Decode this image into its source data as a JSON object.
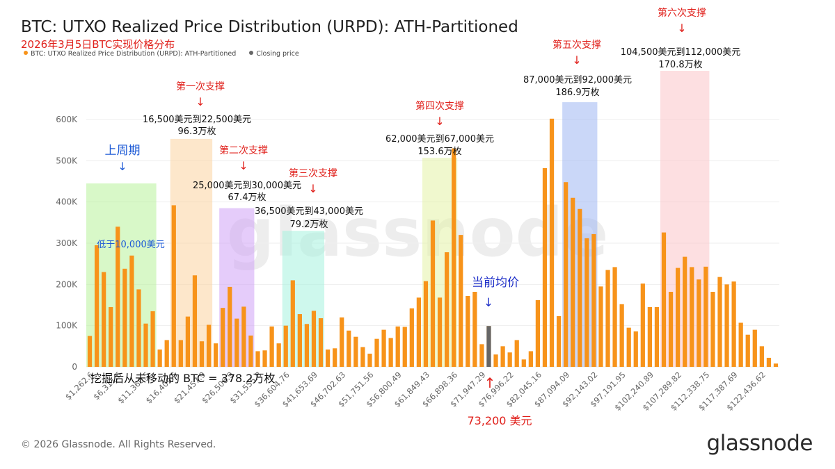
{
  "header": {
    "title": "BTC: UTXO Realized Price Distribution (URPD): ATH-Partitioned",
    "subtitle": "2026年3月5日BTC实现价格分布"
  },
  "legend": {
    "items": [
      {
        "label": "BTC: UTXO Realized Price Distribution (URPD): ATH-Partitioned",
        "color": "#f7931a"
      },
      {
        "label": "Closing price",
        "color": "#666666"
      }
    ]
  },
  "footer": {
    "copyright": "© 2026 Glassnode. All Rights Reserved.",
    "brand": "glassnode"
  },
  "watermark": "glassnode",
  "chart_data": {
    "type": "bar",
    "ylim": [
      0,
      600000
    ],
    "y_ticks": [
      0,
      100000,
      200000,
      300000,
      400000,
      500000,
      600000
    ],
    "y_tick_labels": [
      "0",
      "100K",
      "200K",
      "300K",
      "400K",
      "500K",
      "600K"
    ],
    "x_tick_labels": [
      "$1,262.6",
      "$6,311.6",
      "$11,360.5",
      "$16,409.5",
      "$21,457.9",
      "$26,506.9",
      "$31,555.8",
      "$36,604.76",
      "$41,653.69",
      "$46,702.63",
      "$51,751.56",
      "$56,800.49",
      "$61,849.43",
      "$66,898.36",
      "$71,947.29",
      "$76,996.22",
      "$82,045.16",
      "$87,094.09",
      "$92,143.02",
      "$97,191.95",
      "$102,240.89",
      "$107,289.82",
      "$112,338.75",
      "$117,387.69",
      "$122,436.62"
    ],
    "series": [
      {
        "name": "BTC: UTXO Realized Price Distribution (URPD): ATH-Partitioned",
        "color": "#f7931a",
        "values": [
          75000,
          295000,
          230000,
          145000,
          340000,
          238000,
          270000,
          188000,
          105000,
          135000,
          42000,
          65000,
          392000,
          65000,
          122000,
          222000,
          62000,
          102000,
          57000,
          143000,
          194000,
          117000,
          146000,
          76000,
          38000,
          40000,
          98000,
          57000,
          100000,
          210000,
          128000,
          104000,
          136000,
          118000,
          42000,
          45000,
          120000,
          88000,
          73000,
          48000,
          32000,
          68000,
          90000,
          70000,
          98000,
          97000,
          142000,
          168000,
          208000,
          355000,
          168000,
          278000,
          530000,
          320000,
          172000,
          182000,
          55000,
          99000,
          30000,
          50000,
          35000,
          65000,
          18000,
          38000,
          162000,
          482000,
          602000,
          123000,
          448000,
          410000,
          383000,
          312000,
          322000,
          195000,
          235000,
          242000,
          152000,
          95000,
          86000,
          202000,
          145000,
          145000,
          326000,
          182000,
          240000,
          267000,
          242000,
          212000,
          243000,
          182000,
          218000,
          200000,
          207000,
          107000,
          78000,
          90000,
          50000,
          22000,
          8000
        ]
      },
      {
        "name": "Closing price",
        "color": "#666666",
        "index": 57,
        "value": 99000
      }
    ]
  },
  "annotations": {
    "zones": [
      {
        "title": "上周期",
        "arrow": "↓",
        "inner_label": "低于10,000美元",
        "color": "#b8f29a",
        "title_color": "#1e5bd6"
      },
      {
        "title": "第一次支撑",
        "arrow": "↓",
        "range": "16,500美元到22,500美元",
        "amount": "96.3万枚",
        "color": "#fcd3a1",
        "title_color": "#e0201b"
      },
      {
        "title": "第二次支撑",
        "arrow": "↓",
        "range": "25,000美元到30,000美元",
        "amount": "67.4万枚",
        "color": "#cfa2f5",
        "title_color": "#e0201b"
      },
      {
        "title": "第三次支撑",
        "arrow": "↓",
        "range": "36,500美元到43,000美元",
        "amount": "79.2万枚",
        "color": "#a6f2df",
        "title_color": "#e0201b"
      },
      {
        "title": "第四次支撑",
        "arrow": "↓",
        "range": "62,000美元到67,000美元",
        "amount": "153.6万枚",
        "color": "#e4f3a6",
        "title_color": "#e0201b"
      },
      {
        "title": "第五次支撑",
        "arrow": "↓",
        "range": "87,000美元到92,000美元",
        "amount": "186.9万枚",
        "color": "#9fb6f2",
        "title_color": "#e0201b"
      },
      {
        "title": "第六次支撑",
        "arrow": "↓",
        "range": "104,500美元到112,000美元",
        "amount": "170.8万枚",
        "color": "#fbc4c8",
        "title_color": "#e0201b"
      }
    ],
    "current_avg": {
      "label": "当前均价",
      "arrow": "↓",
      "color": "#1e2fc8"
    },
    "price_marker": {
      "label": "73,200 美元",
      "arrow": "↑",
      "color": "#e0201b"
    },
    "unmoved_note": "挖掘后从未移动的 BTC = 378.2万枚"
  }
}
